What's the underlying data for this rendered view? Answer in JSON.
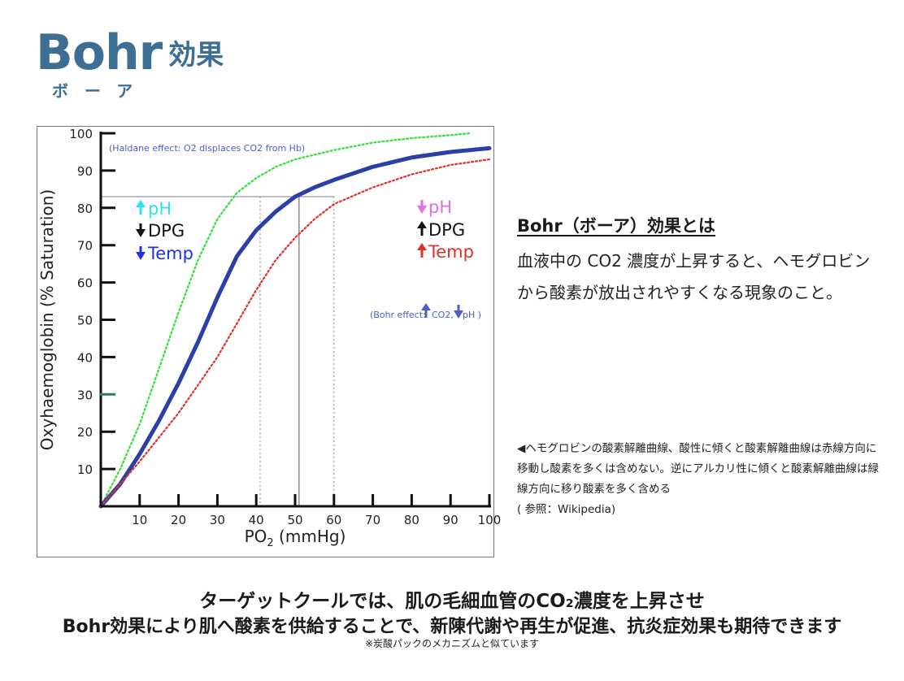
{
  "title": {
    "main": "Bohr",
    "jp": "効果",
    "ruby": "ボーア"
  },
  "side": {
    "heading": "Bohr（ボーア）効果とは",
    "body": "血液中の CO2 濃度が上昇すると、ヘモグロビンから酸素が放出されやすくなる現象のこと。",
    "caption": "◀ヘモグロビンの酸素解離曲線、酸性に傾くと酸素解離曲線は赤線方向に移動し酸素を多くは含めない。逆にアルカリ性に傾くと酸素解離曲線は緑線方向に移り酸素を多く含める\n( 参照：Wikipedia)"
  },
  "bottom": {
    "line1": "ターゲットクールでは、肌の毛細血管のCO₂濃度を上昇させ",
    "line2": "Bohr効果により肌へ酸素を供給することで、新陳代謝や再生が促進、抗炎症効果も期待できます",
    "note": "※炭酸パックのメカニズムと似ています"
  },
  "chart_data": {
    "type": "line",
    "xlabel": "PO2 (mmHg)",
    "ylabel": "Oxyhaemoglobin (% Saturation)",
    "xlim": [
      0,
      100
    ],
    "ylim": [
      0,
      100
    ],
    "xticks": [
      10,
      20,
      30,
      40,
      50,
      60,
      70,
      80,
      90,
      100
    ],
    "yticks": [
      10,
      20,
      30,
      40,
      50,
      60,
      70,
      80,
      90,
      100
    ],
    "grid": false,
    "series": [
      {
        "color": "#33e033",
        "style": "dotted",
        "points": [
          [
            0,
            0
          ],
          [
            5,
            10
          ],
          [
            10,
            22
          ],
          [
            15,
            37
          ],
          [
            20,
            52
          ],
          [
            25,
            66
          ],
          [
            30,
            77
          ],
          [
            35,
            84
          ],
          [
            40,
            88
          ],
          [
            45,
            91
          ],
          [
            50,
            93
          ],
          [
            60,
            95.5
          ],
          [
            70,
            97.5
          ],
          [
            80,
            98.7
          ],
          [
            90,
            99.5
          ],
          [
            95,
            100
          ]
        ]
      },
      {
        "color": "#2b3fa8",
        "style": "solid",
        "points": [
          [
            0,
            0
          ],
          [
            5,
            6
          ],
          [
            10,
            14
          ],
          [
            15,
            23
          ],
          [
            20,
            33
          ],
          [
            25,
            44
          ],
          [
            30,
            56
          ],
          [
            35,
            67
          ],
          [
            40,
            74
          ],
          [
            45,
            79
          ],
          [
            50,
            83
          ],
          [
            55,
            85.5
          ],
          [
            60,
            87.5
          ],
          [
            70,
            91
          ],
          [
            80,
            93.5
          ],
          [
            90,
            95
          ],
          [
            100,
            96
          ]
        ]
      },
      {
        "color": "#e0302a",
        "style": "dotted",
        "points": [
          [
            0,
            0
          ],
          [
            10,
            12
          ],
          [
            20,
            25
          ],
          [
            30,
            40
          ],
          [
            35,
            49
          ],
          [
            40,
            58
          ],
          [
            45,
            66
          ],
          [
            50,
            72
          ],
          [
            55,
            77
          ],
          [
            60,
            81
          ],
          [
            70,
            85.5
          ],
          [
            80,
            89
          ],
          [
            90,
            91.5
          ],
          [
            100,
            93
          ]
        ]
      }
    ],
    "reference_lines": [
      {
        "y": 83,
        "x_start": 0,
        "x_end": 60,
        "style": "solid"
      },
      {
        "x": 41,
        "y_end": 83,
        "style": "dotted"
      },
      {
        "x": 51,
        "y_end": 83,
        "style": "solid"
      },
      {
        "x": 60,
        "y_end": 83,
        "style": "dotted"
      }
    ],
    "annotations": {
      "haldane": "(Haldane effect: O2 displaces CO2 from Hb)",
      "bohr": "(Bohr effect:",
      "bohr_co2": "CO2,",
      "bohr_ph": "pH )",
      "left": [
        {
          "arrow": "up",
          "arrow_color": "#2fe0f0",
          "text": "pH",
          "color": "#2fe0f0"
        },
        {
          "arrow": "down",
          "arrow_color": "#111111",
          "text": "DPG",
          "color": "#111111"
        },
        {
          "arrow": "down",
          "arrow_color": "#2233dd",
          "text": "Temp",
          "color": "#2233dd"
        }
      ],
      "right": [
        {
          "arrow": "down",
          "arrow_color": "#e070e0",
          "text": "pH",
          "color": "#e070e0"
        },
        {
          "arrow": "up",
          "arrow_color": "#111111",
          "text": "DPG",
          "color": "#111111"
        },
        {
          "arrow": "up",
          "arrow_color": "#e0302a",
          "text": "Temp",
          "color": "#e0302a"
        }
      ]
    }
  }
}
